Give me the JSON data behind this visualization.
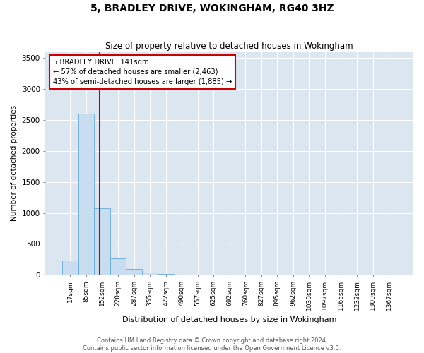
{
  "title": "5, BRADLEY DRIVE, WOKINGHAM, RG40 3HZ",
  "subtitle": "Size of property relative to detached houses in Wokingham",
  "xlabel": "Distribution of detached houses by size in Wokingham",
  "ylabel": "Number of detached properties",
  "bar_color": "#c9ddf0",
  "bar_edge_color": "#6aaad4",
  "property_line_color": "#cc0000",
  "background_color": "#ffffff",
  "plot_bg_color": "#dce6f1",
  "grid_color": "#ffffff",
  "annotation_line1": "5 BRADLEY DRIVE: 141sqm",
  "annotation_line2": "← 57% of detached houses are smaller (2,463)",
  "annotation_line3": "43% of semi-detached houses are larger (1,885) →",
  "annotation_box_color": "#cc0000",
  "footer_text": "Contains HM Land Registry data © Crown copyright and database right 2024.\nContains public sector information licensed under the Open Government Licence v3.0.",
  "categories": [
    "17sqm",
    "85sqm",
    "152sqm",
    "220sqm",
    "287sqm",
    "355sqm",
    "422sqm",
    "490sqm",
    "557sqm",
    "625sqm",
    "692sqm",
    "760sqm",
    "827sqm",
    "895sqm",
    "962sqm",
    "1030sqm",
    "1097sqm",
    "1165sqm",
    "1232sqm",
    "1300sqm",
    "1367sqm"
  ],
  "values": [
    230,
    2600,
    1080,
    270,
    95,
    40,
    12,
    0,
    0,
    0,
    0,
    0,
    0,
    0,
    0,
    0,
    0,
    0,
    0,
    0,
    0
  ],
  "ylim": [
    0,
    3600
  ],
  "yticks": [
    0,
    500,
    1000,
    1500,
    2000,
    2500,
    3000,
    3500
  ],
  "figsize": [
    6.0,
    5.0
  ],
  "dpi": 100
}
